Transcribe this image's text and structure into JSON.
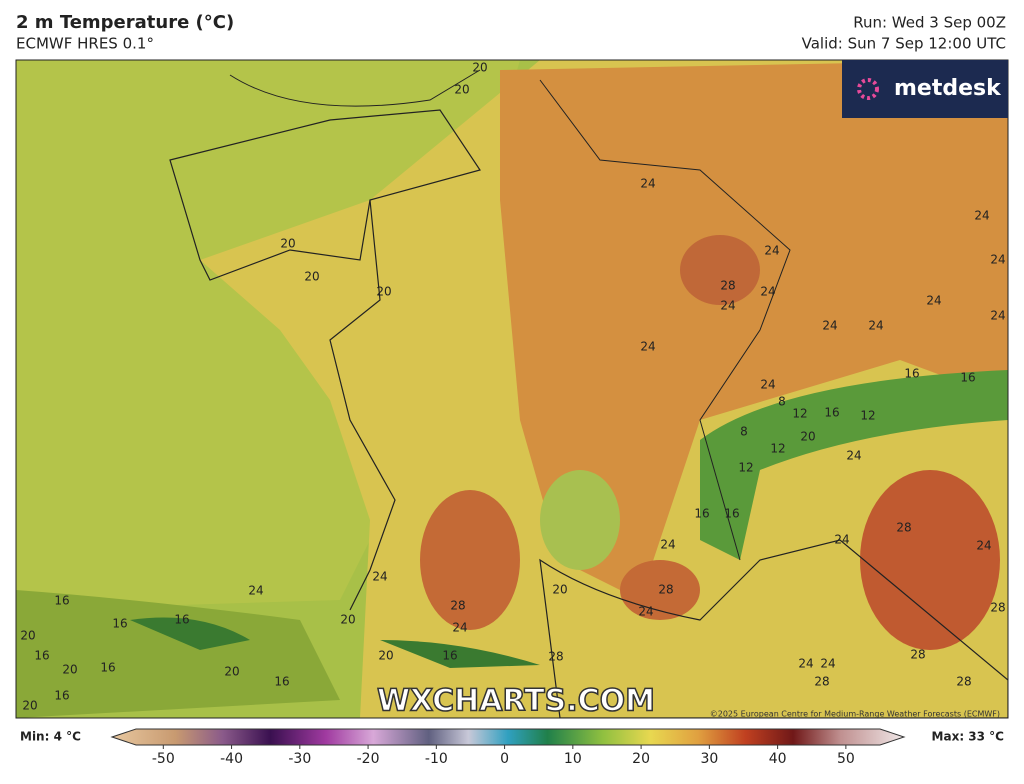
{
  "header": {
    "title": "2 m Temperature (°C)",
    "subtitle": "ECMWF HRES 0.1°",
    "run": "Run: Wed 3 Sep 00Z",
    "valid": "Valid: Sun 7 Sep 12:00 UTC"
  },
  "logo": "metdesk",
  "watermark": "WXCHARTS.COM",
  "credit": "©2025 European Centre for Medium-Range Weather Forecasts (ECMWF)",
  "contour_labels": [
    20,
    20,
    20,
    20,
    20,
    24,
    24,
    24,
    24,
    28,
    24,
    24,
    24,
    24,
    24,
    24,
    24,
    24,
    16,
    16,
    8,
    12,
    16,
    12,
    8,
    20,
    12,
    24,
    12,
    16,
    16,
    28,
    24,
    24,
    24,
    24,
    24,
    20,
    28,
    24,
    28,
    24,
    16,
    16,
    16,
    20,
    20,
    16,
    20,
    16,
    20,
    16,
    20,
    16,
    28,
    24,
    28,
    24,
    28,
    28,
    28,
    20,
    16
  ],
  "colorbar": {
    "min_label": "Min: 4 °C",
    "max_label": "Max: 33 °C",
    "lim": [
      -54,
      55
    ],
    "ticks": [
      -50,
      -40,
      -30,
      -20,
      -10,
      0,
      10,
      20,
      30,
      40,
      50
    ]
  }
}
